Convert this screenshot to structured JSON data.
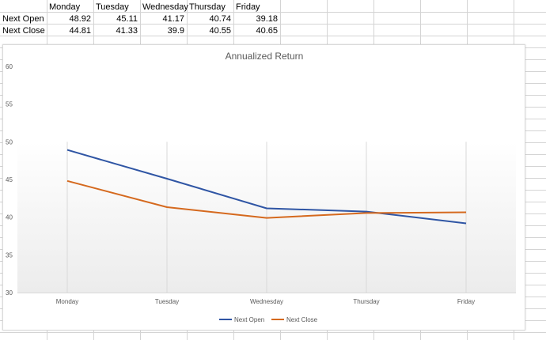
{
  "table": {
    "headers": [
      "",
      "Monday",
      "Tuesday",
      "Wednesday",
      "Thursday",
      "Friday"
    ],
    "rows": [
      {
        "label": "Next Open",
        "values": [
          "48.92",
          "45.11",
          "41.17",
          "40.74",
          "39.18"
        ]
      },
      {
        "label": "Next Close",
        "values": [
          "44.81",
          "41.33",
          "39.9",
          "40.55",
          "40.65"
        ]
      }
    ]
  },
  "chart_data": {
    "type": "line",
    "title": "Annualized Return",
    "categories": [
      "Monday",
      "Tuesday",
      "Wednesday",
      "Thursday",
      "Friday"
    ],
    "series": [
      {
        "name": "Next Open",
        "values": [
          48.92,
          45.11,
          41.17,
          40.74,
          39.18
        ],
        "color": "#2f55a4"
      },
      {
        "name": "Next Close",
        "values": [
          44.81,
          41.33,
          39.9,
          40.55,
          40.65
        ],
        "color": "#d5691e"
      }
    ],
    "ylim": [
      30,
      60
    ],
    "yticks": [
      "30",
      "35",
      "40",
      "45",
      "50",
      "55",
      "60"
    ],
    "legend_position": "bottom",
    "grid": "vertical"
  }
}
